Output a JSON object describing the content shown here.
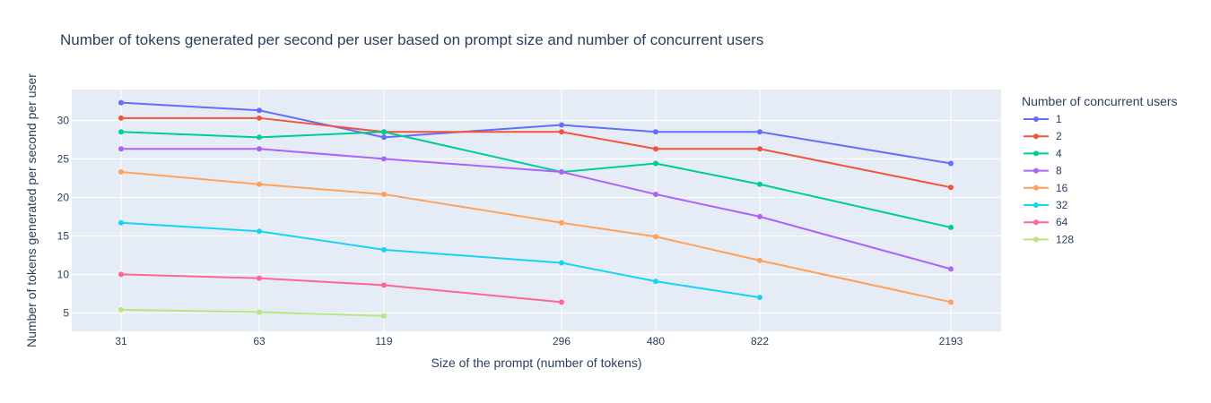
{
  "chart_data": {
    "type": "line",
    "title": "Number of tokens generated per second per user based on prompt size and number of concurrent users",
    "xlabel": "Size of the prompt (number of tokens)",
    "ylabel": "Number of tokens generated per second per user",
    "x_type": "category",
    "categories": [
      "31",
      "63",
      "119",
      "296",
      "480",
      "822",
      "2193"
    ],
    "ylim": [
      2.6,
      34
    ],
    "yticks": [
      5,
      10,
      15,
      20,
      25,
      30
    ],
    "grid": true,
    "legend_title": "Number of concurrent users",
    "legend_position": "right",
    "series": [
      {
        "name": "1",
        "color": "#636efa",
        "values": [
          32.3,
          31.3,
          27.8,
          29.4,
          28.5,
          28.5,
          24.4
        ]
      },
      {
        "name": "2",
        "color": "#ef553b",
        "values": [
          30.3,
          30.3,
          28.5,
          28.5,
          26.3,
          26.3,
          21.3
        ]
      },
      {
        "name": "4",
        "color": "#00cc96",
        "values": [
          28.5,
          27.8,
          28.5,
          23.3,
          24.4,
          21.7,
          16.1
        ]
      },
      {
        "name": "8",
        "color": "#ab63fa",
        "values": [
          26.3,
          26.3,
          25.0,
          23.3,
          20.4,
          17.5,
          10.7
        ]
      },
      {
        "name": "16",
        "color": "#ffa15a",
        "values": [
          23.3,
          21.7,
          20.4,
          16.7,
          14.9,
          11.8,
          6.4
        ]
      },
      {
        "name": "32",
        "color": "#19d3f3",
        "values": [
          16.7,
          15.6,
          13.2,
          11.5,
          9.1,
          7.0,
          null
        ]
      },
      {
        "name": "64",
        "color": "#ff6692",
        "values": [
          10.0,
          9.5,
          8.6,
          6.4,
          null,
          null,
          null
        ]
      },
      {
        "name": "128",
        "color": "#b6e880",
        "values": [
          5.4,
          5.1,
          4.6,
          null,
          null,
          null,
          null
        ]
      }
    ]
  }
}
